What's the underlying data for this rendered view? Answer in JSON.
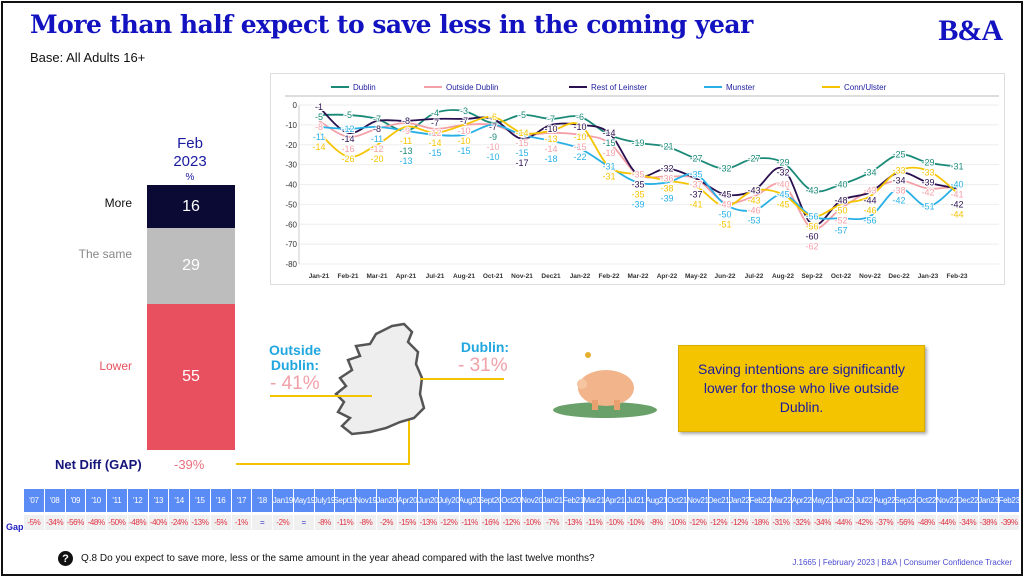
{
  "header": {
    "title": "More than half expect to save less in the coming year",
    "base": "Base: All Adults 16+",
    "logo": "B&A"
  },
  "summary": {
    "period_month": "Feb",
    "period_year": "2023",
    "unit": "%",
    "rows": [
      {
        "label": "More",
        "value": 16,
        "color": "#0a0a35",
        "label_color": "#111"
      },
      {
        "label": "The same",
        "value": 29,
        "color": "#bdbdbd",
        "label_color": "#888"
      },
      {
        "label": "Lower",
        "value": 55,
        "color": "#e8505f",
        "label_color": "#e8505f"
      }
    ],
    "net_label": "Net Diff (GAP)",
    "net_value": "-39%"
  },
  "regions": {
    "outside_label": "Outside Dublin:",
    "outside_value": "- 41%",
    "dublin_label": "Dublin:",
    "dublin_value": "- 31%"
  },
  "callout": "Saving intentions are significantly lower for those who live outside Dublin.",
  "chart_data": {
    "type": "line",
    "categories": [
      "Jan-21",
      "Feb-21",
      "Mar-21",
      "Apr-21",
      "Jul-21",
      "Aug-21",
      "Oct-21",
      "Nov-21",
      "Dec21",
      "Jan-22",
      "Feb-22",
      "Mar-22",
      "Apr-22",
      "May-22",
      "Jun-22",
      "Jul-22",
      "Aug-22",
      "Sep-22",
      "Oct-22",
      "Nov-22",
      "Dec-22",
      "Jan-23",
      "Feb-23"
    ],
    "ylim": [
      -80,
      0
    ],
    "yticks": [
      0,
      -10,
      -20,
      -30,
      -40,
      -50,
      -60,
      -70,
      -80
    ],
    "grid": true,
    "legend": "top",
    "series": [
      {
        "name": "Dublin",
        "color": "#1a8a78",
        "values": [
          -5,
          -5,
          -7,
          -13,
          -4,
          -3,
          -9,
          -5,
          -7,
          -6,
          -15,
          -19,
          -21,
          -27,
          -32,
          -27,
          -29,
          -43,
          -40,
          -34,
          -25,
          -29,
          -31
        ]
      },
      {
        "name": "Outside Dublin",
        "color": "#f4a0a8",
        "values": [
          -8,
          -16,
          -12,
          -9,
          -12,
          -10,
          -10,
          -15,
          -14,
          -15,
          -19,
          -35,
          -36,
          -37,
          -49,
          -46,
          -40,
          -62,
          -52,
          -43,
          -38,
          -42,
          -41
        ]
      },
      {
        "name": "Rest of Leinster",
        "color": "#2a1050",
        "values": [
          -1,
          -14,
          -8,
          -8,
          -7,
          -7,
          -7,
          -17,
          -10,
          -10,
          -14,
          -35,
          -32,
          -37,
          -45,
          -43,
          -32,
          -60,
          -48,
          -44,
          -34,
          -39,
          -42
        ]
      },
      {
        "name": "Munster",
        "color": "#28b0e6",
        "values": [
          -11,
          -12,
          -11,
          -13,
          -15,
          -15,
          -10,
          -15,
          -18,
          -22,
          -31,
          -39,
          -39,
          -35,
          -50,
          -53,
          -45,
          -56,
          -57,
          -56,
          -42,
          -51,
          -40
        ]
      },
      {
        "name": "Conn/Ulster",
        "color": "#f5c400",
        "values": [
          -14,
          -26,
          -20,
          -11,
          -14,
          -10,
          -6,
          -14,
          -13,
          -10,
          -31,
          -35,
          -38,
          -41,
          -51,
          -43,
          -45,
          -56,
          -50,
          -46,
          -33,
          -33,
          -44
        ]
      }
    ]
  },
  "gap_table": {
    "row_label": "Gap",
    "periods": [
      "'07",
      "'08",
      "'09",
      "'10",
      "'11",
      "'12",
      "'13",
      "'14",
      "'15",
      "'16",
      "'17",
      "'18",
      "Jan 19",
      "May 19",
      "July 19",
      "Sept 19",
      "Nov 19",
      "Jan 20",
      "Apr 20",
      "Jun 20",
      "July 20",
      "Aug 20",
      "Sept 20",
      "Oct 20",
      "Nov 20",
      "Jan 21",
      "Feb 21",
      "Mar 21",
      "Apr 21",
      "Jul 21",
      "Aug 21",
      "Oct 21",
      "Nov 21",
      "Dec 21",
      "Jan 22",
      "Feb 22",
      "Mar 22",
      "Apr 22",
      "May 22",
      "Jun 22",
      "Jul 22",
      "Aug 22",
      "Sep 22",
      "Oct 22",
      "Nov 22",
      "Dec 22",
      "Jan 23",
      "Feb 23"
    ],
    "values": [
      "-5%",
      "-34%",
      "-56%",
      "-48%",
      "-50%",
      "-48%",
      "-40%",
      "-24%",
      "-13%",
      "-5%",
      "-1%",
      "=",
      "-2%",
      "=",
      "-8%",
      "-11%",
      "-8%",
      "-2%",
      "-15%",
      "-13%",
      "-12%",
      "-11%",
      "-16%",
      "-12%",
      "-10%",
      "-7%",
      "-13%",
      "-11%",
      "-10%",
      "-10%",
      "-8%",
      "-10%",
      "-12%",
      "-12%",
      "-12%",
      "-18%",
      "-31%",
      "-32%",
      "-34%",
      "-44%",
      "-42%",
      "-37%",
      "-56%",
      "-48%",
      "-44%",
      "-34%",
      "-38%",
      "-39%"
    ]
  },
  "footer": {
    "question_icon": "?",
    "question": "Q.8 Do you expect to save more, less or the same amount in the year ahead compared with the last twelve months?",
    "source": "J.1665 | February 2023 | B&A | Consumer Confidence Tracker"
  }
}
